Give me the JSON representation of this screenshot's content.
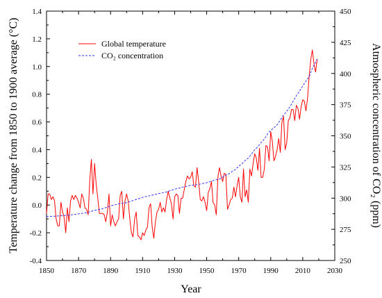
{
  "chart_data": {
    "type": "line",
    "title": "",
    "xlabel": "Year",
    "ylabel": "Temperature change from 1850 to 1900 average (°C)",
    "y2label": "Atmospheric concentration of CO₂ (ppm)",
    "xlim": [
      1850,
      2030
    ],
    "ylim": [
      -0.4,
      1.4
    ],
    "y2lim": [
      250,
      450
    ],
    "x_ticks": [
      1850,
      1870,
      1890,
      1910,
      1930,
      1950,
      1970,
      1990,
      2010,
      2030
    ],
    "y_ticks": [
      "-0.4",
      "-0.2",
      "0.0",
      "0.2",
      "0.4",
      "0.6",
      "0.8",
      "1.0",
      "1.2",
      "1.4"
    ],
    "y2_ticks": [
      "250",
      "275",
      "300",
      "325",
      "350",
      "375",
      "400",
      "425",
      "450"
    ],
    "grid": false,
    "legend_position": "top-left",
    "series": [
      {
        "name": "Global temperature",
        "axis": "left",
        "color": "#ff0000",
        "style": "solid",
        "x": [
          1850,
          1851,
          1852,
          1853,
          1854,
          1855,
          1856,
          1857,
          1858,
          1859,
          1860,
          1861,
          1862,
          1863,
          1864,
          1865,
          1866,
          1867,
          1868,
          1869,
          1870,
          1871,
          1872,
          1873,
          1874,
          1875,
          1876,
          1877,
          1878,
          1879,
          1880,
          1881,
          1882,
          1883,
          1884,
          1885,
          1886,
          1887,
          1888,
          1889,
          1890,
          1891,
          1892,
          1893,
          1894,
          1895,
          1896,
          1897,
          1898,
          1899,
          1900,
          1901,
          1902,
          1903,
          1904,
          1905,
          1906,
          1907,
          1908,
          1909,
          1910,
          1911,
          1912,
          1913,
          1914,
          1915,
          1916,
          1917,
          1918,
          1919,
          1920,
          1921,
          1922,
          1923,
          1924,
          1925,
          1926,
          1927,
          1928,
          1929,
          1930,
          1931,
          1932,
          1933,
          1934,
          1935,
          1936,
          1937,
          1938,
          1939,
          1940,
          1941,
          1942,
          1943,
          1944,
          1945,
          1946,
          1947,
          1948,
          1949,
          1950,
          1951,
          1952,
          1953,
          1954,
          1955,
          1956,
          1957,
          1958,
          1959,
          1960,
          1961,
          1962,
          1963,
          1964,
          1965,
          1966,
          1967,
          1968,
          1969,
          1970,
          1971,
          1972,
          1973,
          1974,
          1975,
          1976,
          1977,
          1978,
          1979,
          1980,
          1981,
          1982,
          1983,
          1984,
          1985,
          1986,
          1987,
          1988,
          1989,
          1990,
          1991,
          1992,
          1993,
          1994,
          1995,
          1996,
          1997,
          1998,
          1999,
          2000,
          2001,
          2002,
          2003,
          2004,
          2005,
          2006,
          2007,
          2008,
          2009,
          2010,
          2011,
          2012,
          2013,
          2014,
          2015,
          2016,
          2017,
          2018,
          2019
        ],
        "values": [
          -0.06,
          0.08,
          0.08,
          0.04,
          0.06,
          0.03,
          -0.1,
          -0.15,
          -0.15,
          0.02,
          -0.05,
          -0.09,
          -0.2,
          -0.02,
          -0.12,
          0.03,
          0.07,
          0.04,
          0.07,
          0.05,
          0.02,
          -0.02,
          0.08,
          0.05,
          -0.02,
          -0.03,
          -0.07,
          0.18,
          0.33,
          0.08,
          0.3,
          0.15,
          0.05,
          -0.06,
          -0.06,
          -0.06,
          -0.07,
          -0.12,
          -0.05,
          0.08,
          -0.15,
          -0.07,
          -0.12,
          -0.15,
          -0.12,
          -0.1,
          0.07,
          0.1,
          -0.1,
          0.03,
          0.08,
          0.03,
          -0.1,
          -0.2,
          -0.23,
          -0.1,
          -0.05,
          -0.22,
          -0.23,
          -0.25,
          -0.2,
          -0.22,
          -0.18,
          -0.16,
          -0.02,
          0.01,
          -0.16,
          -0.24,
          -0.12,
          -0.05,
          -0.03,
          0.02,
          -0.05,
          -0.02,
          -0.05,
          0.04,
          0.1,
          0.05,
          0.01,
          -0.1,
          0.06,
          0.08,
          0.07,
          -0.06,
          0.05,
          0.05,
          0.11,
          0.17,
          0.21,
          0.19,
          0.2,
          0.24,
          0.14,
          0.13,
          0.27,
          0.17,
          0.04,
          0.03,
          0.06,
          0.02,
          -0.04,
          0.09,
          0.12,
          0.17,
          0.02,
          0.0,
          -0.07,
          0.2,
          0.27,
          0.21,
          0.17,
          0.23,
          0.22,
          -0.03,
          0.0,
          0.04,
          0.05,
          0.13,
          0.06,
          0.14,
          0.2,
          0.06,
          0.02,
          0.26,
          0.06,
          0.11,
          0.02,
          0.26,
          0.21,
          0.3,
          0.37,
          0.34,
          0.25,
          0.41,
          0.2,
          0.2,
          0.26,
          0.43,
          0.42,
          0.32,
          0.53,
          0.46,
          0.32,
          0.35,
          0.4,
          0.48,
          0.38,
          0.6,
          0.64,
          0.4,
          0.45,
          0.61,
          0.63,
          0.69,
          0.69,
          0.61,
          0.72,
          0.7,
          0.62,
          0.71,
          0.76,
          0.75,
          0.68,
          0.77,
          0.93,
          1.05,
          1.12,
          1.02,
          0.96,
          1.05
        ]
      },
      {
        "name": "CO₂ concentration",
        "axis": "right",
        "color": "#3333ff",
        "style": "dashed",
        "x": [
          1850,
          1855,
          1860,
          1865,
          1870,
          1875,
          1880,
          1885,
          1890,
          1895,
          1900,
          1905,
          1910,
          1915,
          1920,
          1925,
          1930,
          1935,
          1940,
          1945,
          1950,
          1955,
          1958,
          1960,
          1962,
          1964,
          1966,
          1968,
          1970,
          1972,
          1974,
          1976,
          1978,
          1980,
          1982,
          1984,
          1986,
          1988,
          1990,
          1992,
          1994,
          1996,
          1998,
          2000,
          2002,
          2004,
          2006,
          2008,
          2010,
          2012,
          2014,
          2016,
          2018,
          2019
        ],
        "values": [
          285.2,
          285.5,
          286.0,
          286.5,
          287.4,
          288.3,
          290.2,
          291.5,
          293.8,
          295.4,
          296.4,
          298.5,
          300.6,
          302.1,
          303.6,
          305.0,
          307.2,
          308.8,
          310.3,
          311.0,
          312.4,
          314.5,
          315.3,
          316.9,
          318.4,
          319.6,
          321.4,
          323.0,
          325.7,
          327.5,
          330.2,
          332.1,
          335.4,
          338.8,
          341.4,
          344.6,
          347.4,
          351.5,
          354.4,
          356.4,
          358.8,
          362.6,
          366.7,
          369.6,
          373.3,
          377.7,
          382.1,
          385.8,
          389.9,
          393.9,
          397.4,
          404.2,
          408.7,
          411.6
        ]
      }
    ]
  }
}
